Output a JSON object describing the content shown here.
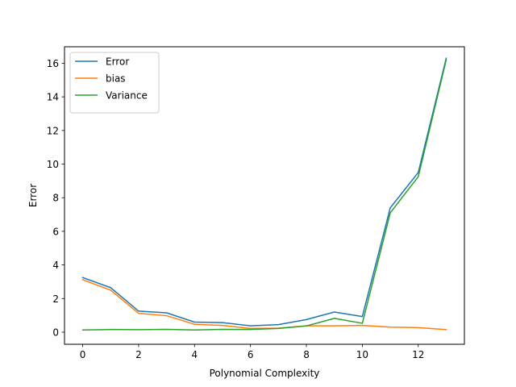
{
  "chart_data": {
    "type": "line",
    "title": "",
    "xlabel": "Polynomial Complexity",
    "ylabel": "Error",
    "xlim": [
      -0.65,
      13.65
    ],
    "ylim": [
      -0.72,
      16.98
    ],
    "xticks": [
      0,
      2,
      4,
      6,
      8,
      10,
      12
    ],
    "yticks": [
      0,
      2,
      4,
      6,
      8,
      10,
      12,
      14,
      16
    ],
    "grid": false,
    "legend_position": "upper-left",
    "x": [
      0,
      1,
      2,
      3,
      4,
      5,
      6,
      7,
      8,
      9,
      10,
      11,
      12,
      13
    ],
    "series": [
      {
        "name": "Error",
        "color": "#1f77b4",
        "values": [
          3.25,
          2.65,
          1.25,
          1.15,
          0.6,
          0.57,
          0.38,
          0.45,
          0.75,
          1.2,
          0.93,
          7.4,
          9.5,
          16.3
        ]
      },
      {
        "name": "bias",
        "color": "#ff7f0e",
        "values": [
          3.12,
          2.5,
          1.12,
          0.98,
          0.47,
          0.4,
          0.22,
          0.24,
          0.38,
          0.38,
          0.4,
          0.3,
          0.27,
          0.15
        ]
      },
      {
        "name": "Variance",
        "color": "#2ca02c",
        "values": [
          0.13,
          0.16,
          0.15,
          0.17,
          0.13,
          0.17,
          0.16,
          0.22,
          0.37,
          0.82,
          0.53,
          7.1,
          9.25,
          16.2
        ]
      }
    ]
  }
}
